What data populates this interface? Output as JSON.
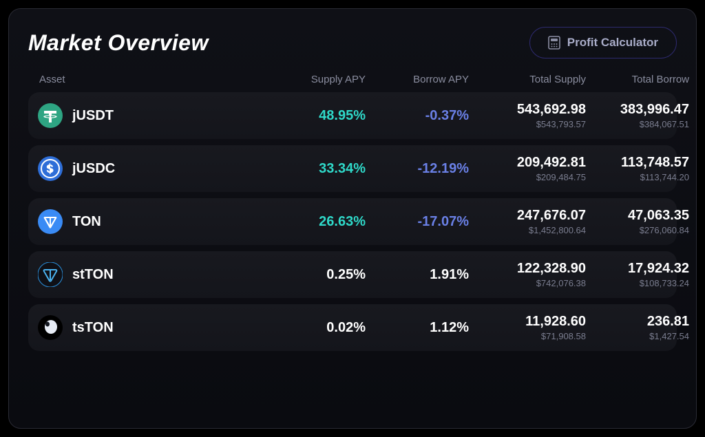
{
  "title": "Market Overview",
  "calculator_label": "Profit Calculator",
  "columns": {
    "asset": "Asset",
    "supply_apy": "Supply APY",
    "borrow_apy": "Borrow APY",
    "total_supply": "Total Supply",
    "total_borrow": "Total Borrow"
  },
  "colors": {
    "positive": "#2fd9c9",
    "negative": "#6a80e6",
    "plain": "#ffffff",
    "panel_bg_top": "#0f1016",
    "panel_bg_bottom": "#0a0b10",
    "row_bg_top": "#18191f",
    "row_bg_bottom": "#14151b",
    "border": "#2a2b35",
    "btn_border": "#2d2a6e",
    "muted": "#8a8d9f"
  },
  "rows": [
    {
      "symbol": "jUSDT",
      "icon_bg": "#2ea583",
      "icon_kind": "tether",
      "supply_apy": "48.95%",
      "supply_apy_class": "apy-pos",
      "borrow_apy": "-0.37%",
      "borrow_apy_class": "apy-neg",
      "total_supply": "543,692.98",
      "total_supply_usd": "$543,793.57",
      "total_borrow": "383,996.47",
      "total_borrow_usd": "$384,067.51"
    },
    {
      "symbol": "jUSDC",
      "icon_bg": "#2e6ed8",
      "icon_kind": "usdc",
      "supply_apy": "33.34%",
      "supply_apy_class": "apy-pos",
      "borrow_apy": "-12.19%",
      "borrow_apy_class": "apy-neg",
      "total_supply": "209,492.81",
      "total_supply_usd": "$209,484.75",
      "total_borrow": "113,748.57",
      "total_borrow_usd": "$113,744.20"
    },
    {
      "symbol": "TON",
      "icon_bg": "#3a8bf5",
      "icon_kind": "ton",
      "supply_apy": "26.63%",
      "supply_apy_class": "apy-pos",
      "borrow_apy": "-17.07%",
      "borrow_apy_class": "apy-neg",
      "total_supply": "247,676.07",
      "total_supply_usd": "$1,452,800.64",
      "total_borrow": "47,063.35",
      "total_borrow_usd": "$276,060.84"
    },
    {
      "symbol": "stTON",
      "icon_bg": "#0f1016",
      "icon_kind": "stton",
      "supply_apy": "0.25%",
      "supply_apy_class": "apy-plain",
      "borrow_apy": "1.91%",
      "borrow_apy_class": "apy-plain",
      "total_supply": "122,328.90",
      "total_supply_usd": "$742,076.38",
      "total_borrow": "17,924.32",
      "total_borrow_usd": "$108,733.24"
    },
    {
      "symbol": "tsTON",
      "icon_bg": "#000000",
      "icon_kind": "tston",
      "supply_apy": "0.02%",
      "supply_apy_class": "apy-plain",
      "borrow_apy": "1.12%",
      "borrow_apy_class": "apy-plain",
      "total_supply": "11,928.60",
      "total_supply_usd": "$71,908.58",
      "total_borrow": "236.81",
      "total_borrow_usd": "$1,427.54"
    }
  ]
}
